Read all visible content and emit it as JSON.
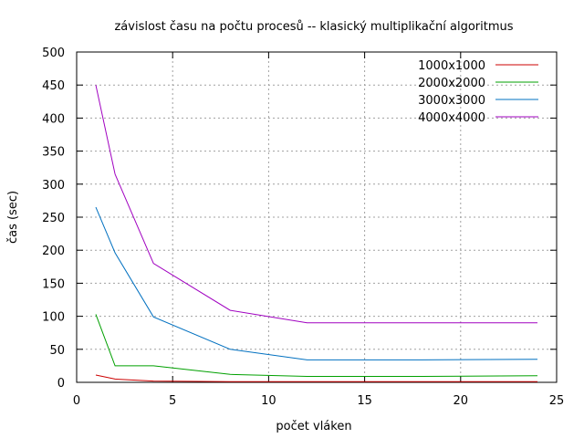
{
  "chart_data": {
    "type": "line",
    "title": "závislost času na počtu procesů -- klasický multiplikační algoritmus",
    "xlabel": "počet vláken",
    "ylabel": "čas (sec)",
    "xlim": [
      0,
      25
    ],
    "ylim": [
      0,
      500
    ],
    "xticks": [
      0,
      5,
      10,
      15,
      20,
      25
    ],
    "yticks": [
      0,
      50,
      100,
      150,
      200,
      250,
      300,
      350,
      400,
      450,
      500
    ],
    "grid": true,
    "legend": "top-right",
    "series": [
      {
        "name": "1000x1000",
        "color": "#cc0000",
        "points": [
          [
            1,
            11
          ],
          [
            2,
            5
          ],
          [
            4,
            2
          ],
          [
            8,
            1
          ],
          [
            12,
            1
          ],
          [
            16,
            1
          ],
          [
            18,
            1
          ],
          [
            24,
            1
          ]
        ]
      },
      {
        "name": "2000x2000",
        "color": "#00a000",
        "points": [
          [
            1,
            103
          ],
          [
            2,
            25
          ],
          [
            4,
            25
          ],
          [
            8,
            12
          ],
          [
            12,
            9
          ],
          [
            16,
            9
          ],
          [
            18,
            9
          ],
          [
            24,
            10
          ]
        ]
      },
      {
        "name": "3000x3000",
        "color": "#0070c0",
        "points": [
          [
            1,
            265
          ],
          [
            2,
            196
          ],
          [
            4,
            99
          ],
          [
            8,
            50
          ],
          [
            12,
            34
          ],
          [
            16,
            34
          ],
          [
            18,
            34
          ],
          [
            24,
            35
          ]
        ]
      },
      {
        "name": "4000x4000",
        "color": "#a000c0",
        "points": [
          [
            1,
            450
          ],
          [
            2,
            315
          ],
          [
            4,
            180
          ],
          [
            8,
            109
          ],
          [
            12,
            90
          ],
          [
            16,
            90
          ],
          [
            18,
            90
          ],
          [
            24,
            90
          ]
        ]
      }
    ]
  }
}
